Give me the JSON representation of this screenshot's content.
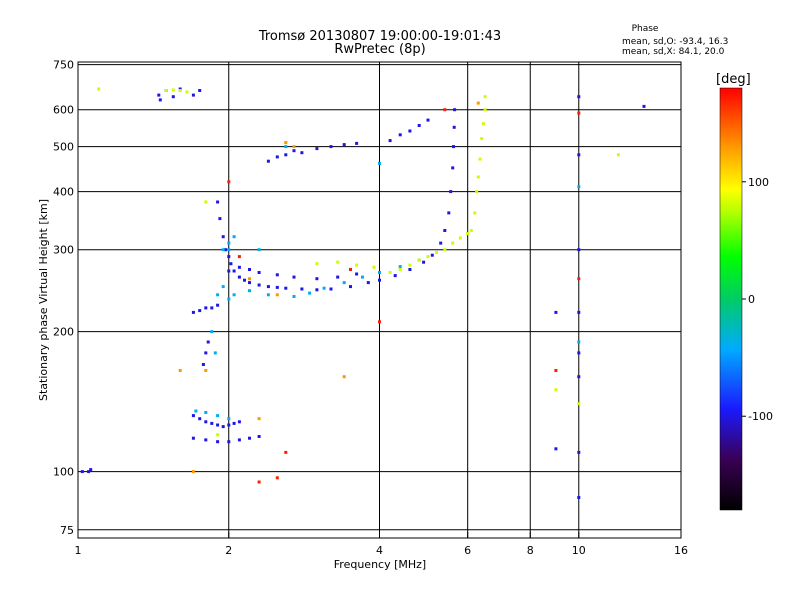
{
  "chart_data": {
    "type": "scatter",
    "title": "Tromsø 20130807 19:00:00-19:01:43",
    "subtitle": "RwPretec (8p)",
    "xlabel": "Frequency [MHz]",
    "ylabel": "Stationary phase Virtual Height [km]",
    "x_scale": "log2",
    "y_scale": "log",
    "xlim": [
      1,
      16
    ],
    "ylim": [
      72,
      760
    ],
    "x_ticks": [
      1,
      2,
      4,
      6,
      8,
      10,
      16
    ],
    "x_tick_labels": [
      "1",
      "2",
      "4",
      "6",
      "8",
      "10",
      "16"
    ],
    "y_ticks": [
      75,
      100,
      200,
      300,
      400,
      500,
      600,
      750
    ],
    "y_tick_labels": [
      "75",
      "100",
      "200",
      "300",
      "400",
      "500",
      "600",
      "750"
    ],
    "grid": true,
    "stats": {
      "title": "Phase",
      "line_o": "mean, sd,O: -93.4, 16.3",
      "line_x": "mean, sd,X:  84.1, 20.0"
    },
    "colorbar": {
      "label": "[deg]",
      "range": [
        -180,
        180
      ],
      "ticks": [
        100,
        0,
        -100
      ],
      "tick_labels": [
        "100",
        "0",
        "-100"
      ],
      "colors": [
        "#000000",
        "#3a0055",
        "#1a1aff",
        "#00aaff",
        "#00cc66",
        "#00ff00",
        "#aaff00",
        "#ffff00",
        "#ff9900",
        "#ff0000"
      ]
    },
    "series": [
      {
        "phase": -100,
        "points": [
          [
            1.05,
            100
          ],
          [
            1.06,
            101
          ],
          [
            1.45,
            645
          ],
          [
            1.46,
            630
          ],
          [
            1.5,
            660
          ],
          [
            1.55,
            640
          ],
          [
            1.6,
            665
          ],
          [
            1.7,
            645
          ],
          [
            1.75,
            660
          ],
          [
            2.4,
            465
          ],
          [
            2.5,
            475
          ],
          [
            2.6,
            480
          ],
          [
            2.7,
            490
          ],
          [
            2.8,
            485
          ],
          [
            3.0,
            495
          ],
          [
            3.2,
            500
          ],
          [
            3.4,
            505
          ],
          [
            3.6,
            508
          ],
          [
            4.2,
            515
          ],
          [
            4.4,
            530
          ],
          [
            4.6,
            540
          ],
          [
            4.8,
            555
          ],
          [
            5.0,
            570
          ],
          [
            1.9,
            380
          ],
          [
            1.92,
            350
          ],
          [
            1.95,
            320
          ],
          [
            1.97,
            300
          ],
          [
            2.0,
            290
          ],
          [
            2.02,
            280
          ],
          [
            2.05,
            270
          ],
          [
            2.1,
            262
          ],
          [
            2.15,
            258
          ],
          [
            2.2,
            255
          ],
          [
            2.3,
            252
          ],
          [
            2.4,
            250
          ],
          [
            2.5,
            249
          ],
          [
            2.6,
            248
          ],
          [
            2.8,
            247
          ],
          [
            3.0,
            246
          ],
          [
            3.2,
            247
          ],
          [
            3.5,
            250
          ],
          [
            3.8,
            255
          ],
          [
            4.0,
            258
          ],
          [
            4.3,
            264
          ],
          [
            4.6,
            272
          ],
          [
            4.9,
            282
          ],
          [
            5.1,
            292
          ],
          [
            5.3,
            310
          ],
          [
            5.4,
            330
          ],
          [
            5.5,
            360
          ],
          [
            5.55,
            400
          ],
          [
            5.6,
            450
          ],
          [
            5.62,
            500
          ],
          [
            5.64,
            550
          ],
          [
            5.65,
            600
          ],
          [
            2.0,
            270
          ],
          [
            2.1,
            275
          ],
          [
            2.2,
            272
          ],
          [
            2.3,
            268
          ],
          [
            2.5,
            265
          ],
          [
            2.7,
            262
          ],
          [
            3.0,
            260
          ],
          [
            3.3,
            262
          ],
          [
            3.6,
            266
          ],
          [
            1.7,
            220
          ],
          [
            1.75,
            222
          ],
          [
            1.8,
            225
          ],
          [
            1.85,
            225
          ],
          [
            1.9,
            228
          ],
          [
            1.8,
            180
          ],
          [
            1.82,
            190
          ],
          [
            1.78,
            170
          ],
          [
            1.7,
            132
          ],
          [
            1.75,
            130
          ],
          [
            1.8,
            128
          ],
          [
            1.85,
            127
          ],
          [
            1.9,
            126
          ],
          [
            1.95,
            125
          ],
          [
            2.0,
            126
          ],
          [
            2.05,
            127
          ],
          [
            2.1,
            128
          ],
          [
            1.7,
            118
          ],
          [
            1.8,
            117
          ],
          [
            1.9,
            116
          ],
          [
            2.0,
            116
          ],
          [
            2.1,
            117
          ],
          [
            2.2,
            118
          ],
          [
            2.3,
            119
          ],
          [
            1.02,
            100
          ],
          [
            9.0,
            112
          ],
          [
            9.0,
            220
          ],
          [
            10.0,
            640
          ],
          [
            10.0,
            480
          ],
          [
            10.0,
            300
          ],
          [
            10.0,
            110
          ],
          [
            10.0,
            88
          ],
          [
            13.5,
            610
          ],
          [
            10.0,
            220
          ],
          [
            10.0,
            160
          ],
          [
            10.0,
            180
          ]
        ]
      },
      {
        "phase": -40,
        "points": [
          [
            1.95,
            250
          ],
          [
            2.05,
            240
          ],
          [
            2.2,
            245
          ],
          [
            2.4,
            240
          ],
          [
            2.7,
            238
          ],
          [
            2.9,
            242
          ],
          [
            3.1,
            248
          ],
          [
            3.4,
            255
          ],
          [
            3.7,
            262
          ],
          [
            4.0,
            268
          ],
          [
            4.4,
            276
          ],
          [
            4.8,
            285
          ],
          [
            1.9,
            240
          ],
          [
            2.0,
            235
          ],
          [
            1.95,
            300
          ],
          [
            2.0,
            310
          ],
          [
            2.05,
            320
          ],
          [
            1.72,
            135
          ],
          [
            1.8,
            134
          ],
          [
            1.9,
            132
          ],
          [
            2.0,
            130
          ],
          [
            1.88,
            180
          ],
          [
            1.85,
            200
          ],
          [
            4.0,
            460
          ],
          [
            10.0,
            410
          ],
          [
            10.0,
            190
          ],
          [
            2.6,
            500
          ],
          [
            2.3,
            300
          ],
          [
            2.0,
            300
          ]
        ]
      },
      {
        "phase": 80,
        "points": [
          [
            4.2,
            268
          ],
          [
            4.4,
            272
          ],
          [
            4.6,
            278
          ],
          [
            4.8,
            285
          ],
          [
            5.0,
            290
          ],
          [
            5.2,
            296
          ],
          [
            5.4,
            300
          ],
          [
            5.6,
            310
          ],
          [
            5.8,
            318
          ],
          [
            6.0,
            325
          ],
          [
            6.1,
            330
          ],
          [
            6.2,
            360
          ],
          [
            6.25,
            400
          ],
          [
            6.3,
            430
          ],
          [
            6.35,
            470
          ],
          [
            6.4,
            520
          ],
          [
            6.45,
            560
          ],
          [
            6.5,
            600
          ],
          [
            6.5,
            640
          ],
          [
            3.0,
            280
          ],
          [
            3.3,
            282
          ],
          [
            3.6,
            278
          ],
          [
            3.9,
            275
          ],
          [
            1.5,
            660
          ],
          [
            1.55,
            662
          ],
          [
            1.6,
            660
          ],
          [
            1.65,
            655
          ],
          [
            1.1,
            665
          ],
          [
            2.6,
            510
          ],
          [
            1.8,
            380
          ],
          [
            12.0,
            480
          ],
          [
            10.0,
            140
          ],
          [
            9.0,
            150
          ],
          [
            1.9,
            120
          ]
        ]
      },
      {
        "phase": 130,
        "points": [
          [
            1.8,
            165
          ],
          [
            1.6,
            165
          ],
          [
            1.7,
            100
          ],
          [
            2.6,
            510
          ],
          [
            2.7,
            500
          ],
          [
            2.3,
            130
          ],
          [
            2.2,
            260
          ],
          [
            2.5,
            240
          ],
          [
            3.4,
            160
          ],
          [
            6.3,
            620
          ]
        ]
      },
      {
        "phase": 170,
        "points": [
          [
            2.3,
            95
          ],
          [
            2.5,
            97
          ],
          [
            2.6,
            110
          ],
          [
            5.4,
            600
          ],
          [
            10.0,
            590
          ],
          [
            9.0,
            165
          ],
          [
            10.0,
            260
          ],
          [
            3.5,
            272
          ],
          [
            2.0,
            420
          ],
          [
            2.1,
            290
          ],
          [
            4.0,
            210
          ]
        ]
      }
    ]
  }
}
